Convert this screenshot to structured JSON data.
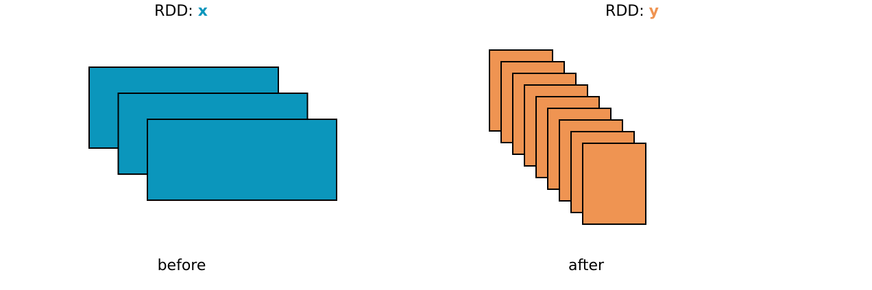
{
  "left_panel": {
    "title_prefix": "RDD: ",
    "title_var": "x",
    "caption": "before",
    "partition_count": 3,
    "color": "#0b96bc"
  },
  "right_panel": {
    "title_prefix": "RDD: ",
    "title_var": "y",
    "caption": "after",
    "partition_count": 9,
    "color": "#ef9452"
  },
  "stroke_color": "#000000"
}
